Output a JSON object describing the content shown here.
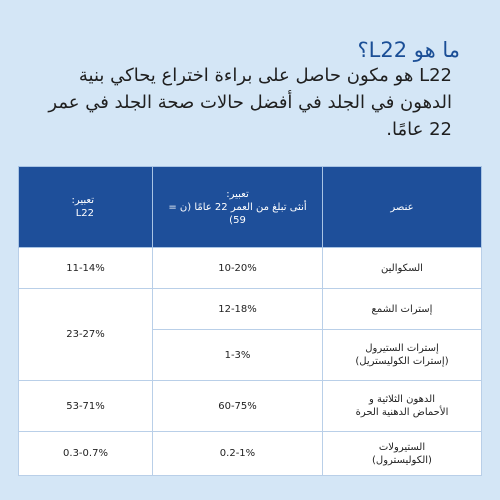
{
  "page": {
    "heading": "ما هو L22؟",
    "subtitle": "L22 هو مكون حاصل على براءة اختراع يحاكي بنية الدهون في الجلد في أفضل حالات صحة الجلد في عمر 22 عامًا."
  },
  "table": {
    "headers": {
      "component": "عنصر",
      "female22": "تعبير:\nأنثى تبلغ من العمر 22 عامًا (ن = 59)",
      "l22": "تعبير:\nL22"
    },
    "rows": [
      {
        "component": "السكوالين",
        "female22": "10-20%",
        "l22": "11-14%"
      },
      {
        "component": "إسترات الشمع",
        "female22": "12-18%",
        "l22": "23-27%"
      },
      {
        "component": "إسترات الستيرول\n(إسترات الكوليستريل)",
        "female22": "1-3%"
      },
      {
        "component": "الدهون الثلاثية و\nالأحماض الدهنية الحرة",
        "female22": "60-75%",
        "l22": "53-71%"
      },
      {
        "component": "الستيرولات\n(الكوليسترول)",
        "female22": "0.2-1%",
        "l22": "0.3-0.7%"
      }
    ]
  }
}
